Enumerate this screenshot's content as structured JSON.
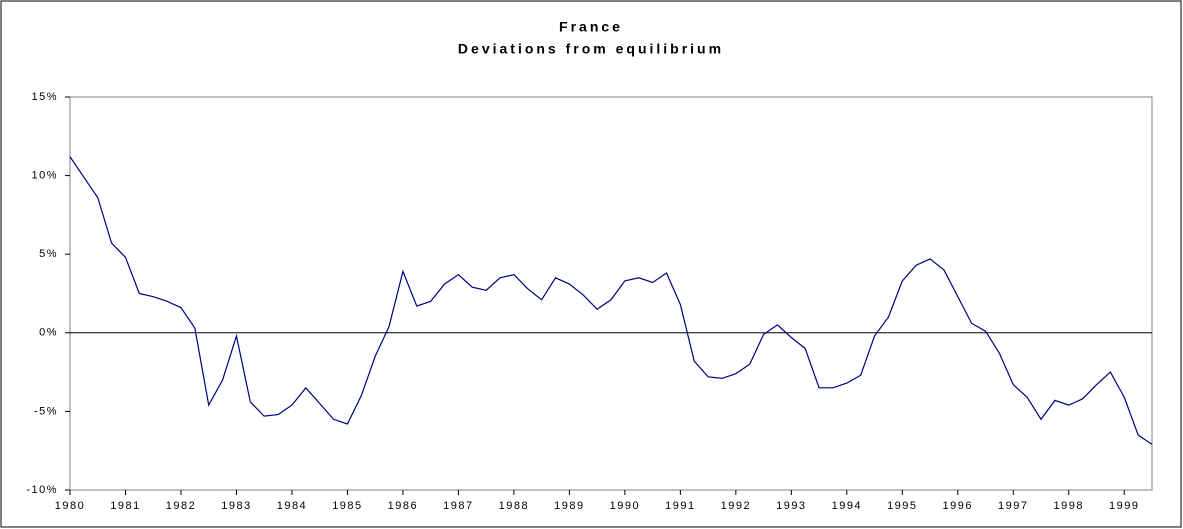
{
  "chart_data": {
    "type": "line",
    "title": "France",
    "subtitle": "Deviations from equilibrium",
    "x": [
      1980,
      1980.25,
      1980.5,
      1980.75,
      1981,
      1981.25,
      1981.5,
      1981.75,
      1982,
      1982.25,
      1982.5,
      1982.75,
      1983,
      1983.25,
      1983.5,
      1983.75,
      1984,
      1984.25,
      1984.5,
      1984.75,
      1985,
      1985.25,
      1985.5,
      1985.75,
      1986,
      1986.25,
      1986.5,
      1986.75,
      1987,
      1987.25,
      1987.5,
      1987.75,
      1988,
      1988.25,
      1988.5,
      1988.75,
      1989,
      1989.25,
      1989.5,
      1989.75,
      1990,
      1990.25,
      1990.5,
      1990.75,
      1991,
      1991.25,
      1991.5,
      1991.75,
      1992,
      1992.25,
      1992.5,
      1992.75,
      1993,
      1993.25,
      1993.5,
      1993.75,
      1994,
      1994.25,
      1994.5,
      1994.75,
      1995,
      1995.25,
      1995.5,
      1995.75,
      1996,
      1996.25,
      1996.5,
      1996.75,
      1997,
      1997.25,
      1997.5,
      1997.75,
      1998,
      1998.25,
      1998.5,
      1998.75,
      1999,
      1999.25,
      1999.5
    ],
    "series": [
      {
        "color": "#000080",
        "values": [
          11.2,
          9.9,
          8.6,
          5.7,
          4.8,
          2.5,
          2.3,
          2.0,
          1.6,
          0.3,
          -4.6,
          -3.0,
          -0.2,
          -4.4,
          -5.3,
          -5.2,
          -4.6,
          -3.5,
          -4.5,
          -5.5,
          -5.8,
          -4.0,
          -1.5,
          0.4,
          3.9,
          1.7,
          2.0,
          3.1,
          3.7,
          2.9,
          2.7,
          3.5,
          3.7,
          2.8,
          2.1,
          3.5,
          3.1,
          2.4,
          1.5,
          2.1,
          3.3,
          3.5,
          3.2,
          3.8,
          1.8,
          -1.8,
          -2.8,
          -2.9,
          -2.6,
          -2.0,
          -0.1,
          0.5,
          -0.3,
          -1.0,
          -3.5,
          -3.5,
          -3.2,
          -2.7,
          -0.2,
          1.0,
          3.3,
          4.3,
          4.7,
          4.0,
          2.3,
          0.6,
          0.1,
          -1.3,
          -3.3,
          -4.1,
          -5.5,
          -4.3,
          -4.6,
          -4.2,
          -3.3,
          -2.5,
          -4.1,
          -6.5,
          -7.1
        ]
      }
    ],
    "xlim": [
      1980,
      1999.5
    ],
    "xticks": [
      1980,
      1981,
      1982,
      1983,
      1984,
      1985,
      1986,
      1987,
      1988,
      1989,
      1990,
      1991,
      1992,
      1993,
      1994,
      1995,
      1996,
      1997,
      1998,
      1999
    ],
    "ylim": [
      -10,
      15
    ],
    "yticks": [
      {
        "value": -10,
        "label": "-10%"
      },
      {
        "value": -5,
        "label": "-5%"
      },
      {
        "value": 0,
        "label": "0%"
      },
      {
        "value": 5,
        "label": "5%"
      },
      {
        "value": 10,
        "label": "10%"
      },
      {
        "value": 15,
        "label": "15%"
      }
    ]
  }
}
